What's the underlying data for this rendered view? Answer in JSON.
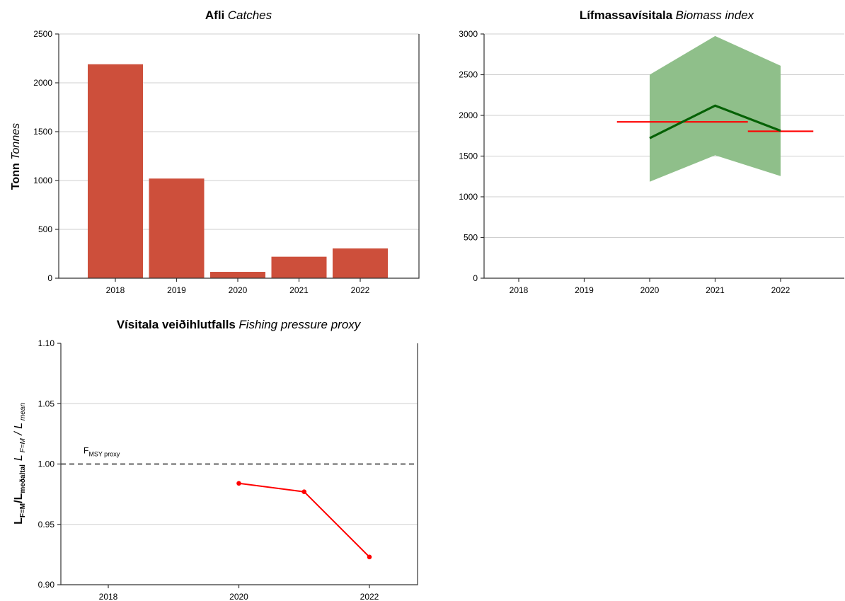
{
  "colors": {
    "bar": "#cd4f3b",
    "biomass_line": "#056105",
    "biomass_band": "#8fbf8a",
    "biomass_mean": "#ff0000",
    "fp_line": "#ff0000",
    "ref_line": "#222222"
  },
  "chart_data": [
    {
      "id": "catches",
      "type": "bar",
      "title_bold": "Afli",
      "title_italic": "Catches",
      "ylabel_bold": "Tonn",
      "ylabel_italic": "Tonnes",
      "xlabel": "",
      "categories": [
        "2018",
        "2019",
        "2020",
        "2021",
        "2022"
      ],
      "values": [
        2190,
        1020,
        65,
        220,
        305
      ],
      "ylim": [
        0,
        2500
      ],
      "yticks": [
        0,
        500,
        1000,
        1500,
        2000,
        2500
      ],
      "grid": true
    },
    {
      "id": "biomass",
      "type": "line",
      "title_bold": "Lífmassavísitala",
      "title_italic": "Biomass index",
      "xlim": [
        2017.3,
        2022.8
      ],
      "xticks": [
        2018,
        2019,
        2020,
        2021,
        2022
      ],
      "ylim": [
        0,
        3000
      ],
      "yticks": [
        0,
        500,
        1000,
        1500,
        2000,
        2500,
        3000
      ],
      "grid": true,
      "series": [
        {
          "x": [
            2020,
            2021,
            2022
          ],
          "y": [
            1720,
            2120,
            1810
          ]
        }
      ],
      "band": {
        "x": [
          2020,
          2021,
          2022
        ],
        "lower": [
          1185,
          1510,
          1255
        ],
        "upper": [
          2500,
          2975,
          2610
        ]
      },
      "mean_segments": [
        {
          "x0": 2019.5,
          "x1": 2021.5,
          "y": 1920
        },
        {
          "x0": 2021.5,
          "x1": 2022.5,
          "y": 1805
        }
      ]
    },
    {
      "id": "fishing_pressure",
      "type": "line",
      "title_bold": "Vísitala veiðihlutfalls",
      "title_italic": "Fishing pressure proxy",
      "ylabel_parts": {
        "l1": "L",
        "l1_sub": "F=M",
        "slash": "/L",
        "l2_sub": "meðaltal",
        "it1": "L",
        "it1_sub": "F=M",
        "it_slash": "/ L",
        "it2_sub": "mean"
      },
      "xlim": [
        2017.3,
        2022.8
      ],
      "xticks": [
        2018,
        2020,
        2022
      ],
      "ylim": [
        0.9,
        1.1
      ],
      "yticks": [
        0.9,
        0.95,
        1.0,
        1.05,
        1.1
      ],
      "ytick_labels": [
        "0.90",
        "0.95",
        "1.00",
        "1.05",
        "1.10"
      ],
      "grid": true,
      "series": [
        {
          "x": [
            2020,
            2021,
            2022
          ],
          "y": [
            0.984,
            0.977,
            0.923
          ]
        }
      ],
      "reference": {
        "y": 1.0,
        "label": "F",
        "label_sub": "MSY proxy"
      }
    }
  ]
}
